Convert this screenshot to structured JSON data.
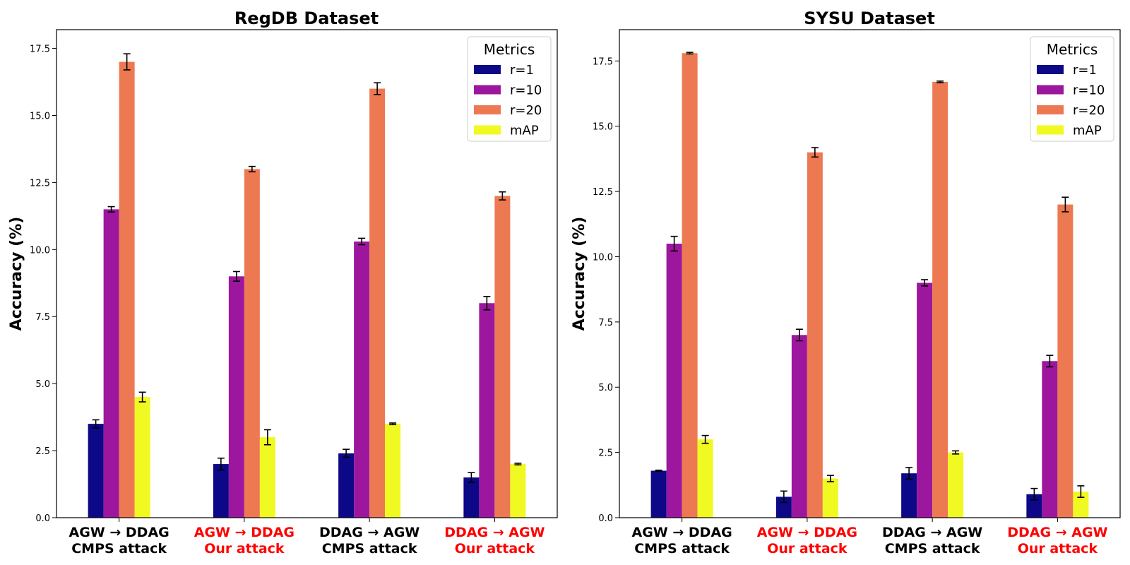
{
  "chart_data": [
    {
      "type": "bar",
      "title": "RegDB Dataset",
      "ylabel": "Accuracy (%)",
      "xlabel": "",
      "ylim": [
        0,
        18.2
      ],
      "yticks": [
        0.0,
        2.5,
        5.0,
        7.5,
        10.0,
        12.5,
        15.0,
        17.5
      ],
      "ytick_labels": [
        "0.0",
        "2.5",
        "5.0",
        "7.5",
        "10.0",
        "12.5",
        "15.0",
        "17.5"
      ],
      "categories": [
        {
          "line1": "AGW → DDAG",
          "line2": "CMPS attack",
          "color": "#000000"
        },
        {
          "line1": "AGW → DDAG",
          "line2": "Our attack",
          "color": "#ff0000"
        },
        {
          "line1": "DDAG → AGW",
          "line2": "CMPS attack",
          "color": "#000000"
        },
        {
          "line1": "DDAG → AGW",
          "line2": "Our attack",
          "color": "#ff0000"
        }
      ],
      "series": [
        {
          "name": "r=1",
          "color": "#0d0887",
          "values": [
            3.5,
            2.0,
            2.4,
            1.5
          ],
          "errors": [
            0.15,
            0.22,
            0.15,
            0.18
          ]
        },
        {
          "name": "r=10",
          "color": "#9c179e",
          "values": [
            11.5,
            9.0,
            10.3,
            8.0
          ],
          "errors": [
            0.1,
            0.18,
            0.12,
            0.25
          ]
        },
        {
          "name": "r=20",
          "color": "#ed7953",
          "values": [
            17.0,
            13.0,
            16.0,
            12.0
          ],
          "errors": [
            0.3,
            0.1,
            0.22,
            0.15
          ]
        },
        {
          "name": "mAP",
          "color": "#f0f921",
          "values": [
            4.5,
            3.0,
            3.5,
            2.0
          ],
          "errors": [
            0.18,
            0.28,
            0.03,
            0.03
          ]
        }
      ],
      "legend": {
        "title": "Metrics",
        "placement": "top-right"
      }
    },
    {
      "type": "bar",
      "title": "SYSU Dataset",
      "ylabel": "Accuracy (%)",
      "xlabel": "",
      "ylim": [
        0,
        18.7
      ],
      "yticks": [
        0.0,
        2.5,
        5.0,
        7.5,
        10.0,
        12.5,
        15.0,
        17.5
      ],
      "ytick_labels": [
        "0.0",
        "2.5",
        "5.0",
        "7.5",
        "10.0",
        "12.5",
        "15.0",
        "17.5"
      ],
      "categories": [
        {
          "line1": "AGW → DDAG",
          "line2": "CMPS attack",
          "color": "#000000"
        },
        {
          "line1": "AGW → DDAG",
          "line2": "Our attack",
          "color": "#ff0000"
        },
        {
          "line1": "DDAG → AGW",
          "line2": "CMPS attack",
          "color": "#000000"
        },
        {
          "line1": "DDAG → AGW",
          "line2": "Our attack",
          "color": "#ff0000"
        }
      ],
      "series": [
        {
          "name": "r=1",
          "color": "#0d0887",
          "values": [
            1.8,
            0.8,
            1.7,
            0.9
          ],
          "errors": [
            0.02,
            0.22,
            0.22,
            0.22
          ]
        },
        {
          "name": "r=10",
          "color": "#9c179e",
          "values": [
            10.5,
            7.0,
            9.0,
            6.0
          ],
          "errors": [
            0.28,
            0.22,
            0.12,
            0.22
          ]
        },
        {
          "name": "r=20",
          "color": "#ed7953",
          "values": [
            17.8,
            14.0,
            16.7,
            12.0
          ],
          "errors": [
            0.03,
            0.18,
            0.03,
            0.28
          ]
        },
        {
          "name": "mAP",
          "color": "#f0f921",
          "values": [
            3.0,
            1.5,
            2.5,
            1.0
          ],
          "errors": [
            0.15,
            0.12,
            0.06,
            0.22
          ]
        }
      ],
      "legend": {
        "title": "Metrics",
        "placement": "top-right"
      }
    }
  ]
}
